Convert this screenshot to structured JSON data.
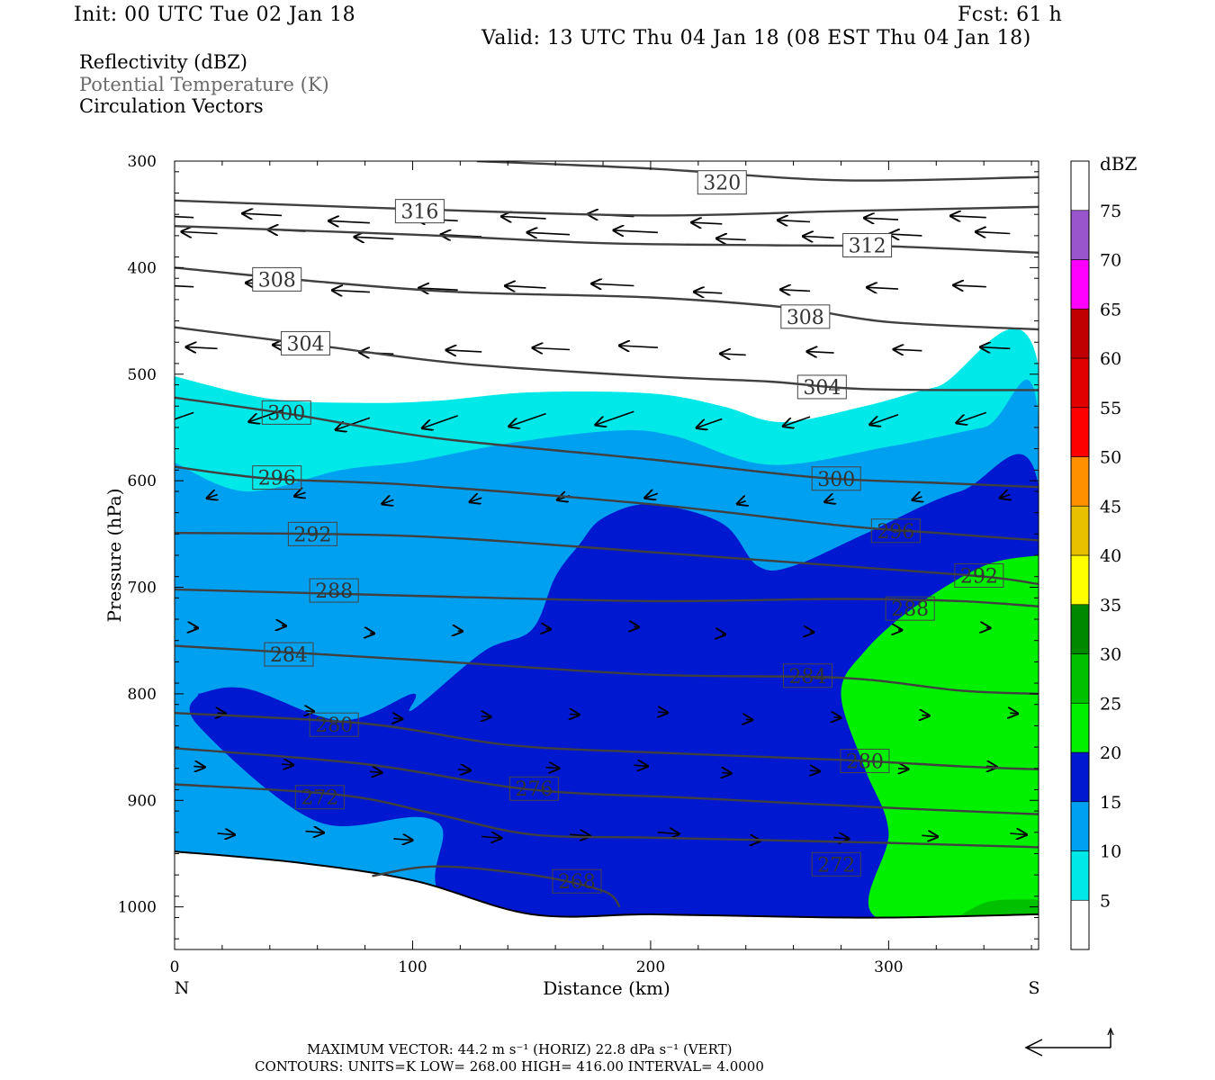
{
  "header": {
    "init": "Init: 00 UTC Tue 02 Jan 18",
    "fcst": "Fcst:   61 h",
    "valid": "Valid: 13 UTC Thu 04 Jan 18 (08 EST Thu 04 Jan 18)",
    "field1": "Reflectivity (dBZ)",
    "field2": "Potential Temperature (K)",
    "field3": "Circulation Vectors"
  },
  "footer": {
    "max_vector": "MAXIMUM VECTOR:  44.2 m s⁻¹ (HORIZ)          22.8 dPa s⁻¹ (VERT)",
    "contours": "CONTOURS:  UNITS=K   LOW=   268.00        HIGH=   416.00        INTERVAL=     4.0000"
  },
  "colors": {
    "c5": "#00e8e8",
    "c10": "#00a0f0",
    "c15": "#0018d0",
    "c20": "#00f000",
    "c25": "#00c000",
    "c30": "#008800",
    "c35": "#ffff00",
    "c40": "#e8c000",
    "c45": "#ff9000",
    "c50": "#ff0000",
    "c55": "#e00000",
    "c60": "#c00000",
    "c65": "#ff00ff",
    "c70": "#9955cc",
    "isentrope": "#404040",
    "ground": "#ffffff"
  },
  "chart_data": {
    "type": "cross-section contour",
    "xlabel": "Distance (km)",
    "ylabel": "Pressure (hPa)",
    "x_end_left": "N",
    "x_end_right": "S",
    "xlim": [
      0,
      363
    ],
    "ylim": [
      1040,
      300
    ],
    "x_ticks": [
      0,
      100,
      200,
      300
    ],
    "y_ticks": [
      300,
      400,
      500,
      600,
      700,
      800,
      900,
      1000
    ],
    "colorbar": {
      "unit": "dBZ",
      "levels": [
        5,
        10,
        15,
        20,
        25,
        30,
        35,
        40,
        45,
        50,
        55,
        60,
        65,
        70,
        75
      ]
    },
    "isentropes": [
      {
        "theta": 320,
        "label": "320",
        "pts": [
          [
            127,
            300
          ],
          [
            200,
            307
          ],
          [
            280,
            318
          ],
          [
            363,
            315
          ]
        ],
        "label_at": [
          230,
          320
        ]
      },
      {
        "theta": 316,
        "label": "316",
        "pts": [
          [
            0,
            337
          ],
          [
            100,
            345
          ],
          [
            200,
            351
          ],
          [
            280,
            347
          ],
          [
            363,
            343
          ]
        ],
        "label_at": [
          103,
          347
        ]
      },
      {
        "theta": 312,
        "label": "312",
        "pts": [
          [
            0,
            361
          ],
          [
            100,
            369
          ],
          [
            180,
            377
          ],
          [
            250,
            379
          ],
          [
            300,
            380
          ],
          [
            363,
            386
          ]
        ],
        "label_at": [
          291,
          379
        ]
      },
      {
        "theta": 308,
        "label": "308",
        "pts": [
          [
            0,
            400
          ],
          [
            60,
            413
          ],
          [
            120,
            423
          ],
          [
            200,
            428
          ],
          [
            260,
            438
          ],
          [
            300,
            451
          ],
          [
            363,
            458
          ]
        ],
        "label_at": [
          265,
          446
        ]
      },
      {
        "theta": 308,
        "label": "308",
        "pts": [],
        "label_at": [
          43,
          411
        ]
      },
      {
        "theta": 304,
        "label": "304",
        "pts": [
          [
            0,
            456
          ],
          [
            60,
            473
          ],
          [
            120,
            490
          ],
          [
            200,
            502
          ],
          [
            250,
            507
          ],
          [
            290,
            514
          ],
          [
            363,
            515
          ]
        ],
        "label_at": [
          272,
          512
        ]
      },
      {
        "theta": 304,
        "label": "304",
        "pts": [],
        "label_at": [
          55,
          471
        ]
      },
      {
        "theta": 300,
        "label": "300",
        "pts": [
          [
            0,
            522
          ],
          [
            50,
            538
          ],
          [
            110,
            560
          ],
          [
            200,
            580
          ],
          [
            270,
            597
          ],
          [
            320,
            602
          ],
          [
            363,
            606
          ]
        ],
        "label_at": [
          278,
          598
        ]
      },
      {
        "theta": 300,
        "label": "300",
        "pts": [],
        "label_at": [
          47,
          536
        ]
      },
      {
        "theta": 296,
        "label": "296",
        "pts": [
          [
            0,
            587
          ],
          [
            40,
            598
          ],
          [
            100,
            604
          ],
          [
            200,
            622
          ],
          [
            280,
            642
          ],
          [
            320,
            649
          ],
          [
            363,
            656
          ]
        ],
        "label_at": [
          303,
          647
        ]
      },
      {
        "theta": 296,
        "label": "296",
        "pts": [],
        "label_at": [
          43,
          597
        ]
      },
      {
        "theta": 292,
        "label": "292",
        "pts": [
          [
            0,
            649
          ],
          [
            100,
            652
          ],
          [
            200,
            667
          ],
          [
            280,
            680
          ],
          [
            340,
            690
          ],
          [
            363,
            697
          ]
        ],
        "label_at": [
          338,
          689
        ]
      },
      {
        "theta": 292,
        "label": "292",
        "pts": [],
        "label_at": [
          58,
          650
        ]
      },
      {
        "theta": 288,
        "label": "288",
        "pts": [
          [
            0,
            702
          ],
          [
            100,
            708
          ],
          [
            200,
            713
          ],
          [
            280,
            711
          ],
          [
            330,
            713
          ],
          [
            363,
            718
          ]
        ],
        "label_at": [
          309,
          720
        ]
      },
      {
        "theta": 288,
        "label": "288",
        "pts": [],
        "label_at": [
          67,
          703
        ]
      },
      {
        "theta": 284,
        "label": "284",
        "pts": [
          [
            0,
            755
          ],
          [
            100,
            768
          ],
          [
            200,
            782
          ],
          [
            280,
            785
          ],
          [
            330,
            797
          ],
          [
            363,
            800
          ]
        ],
        "label_at": [
          266,
          783
        ]
      },
      {
        "theta": 284,
        "label": "284",
        "pts": [],
        "label_at": [
          48,
          763
        ]
      },
      {
        "theta": 280,
        "label": "280",
        "pts": [
          [
            0,
            818
          ],
          [
            80,
            828
          ],
          [
            140,
            848
          ],
          [
            200,
            855
          ],
          [
            280,
            862
          ],
          [
            330,
            868
          ],
          [
            363,
            871
          ]
        ],
        "label_at": [
          290,
          863
        ]
      },
      {
        "theta": 280,
        "label": "280",
        "pts": [],
        "label_at": [
          67,
          829
        ]
      },
      {
        "theta": 276,
        "label": "276",
        "pts": [
          [
            0,
            851
          ],
          [
            80,
            866
          ],
          [
            150,
            890
          ],
          [
            220,
            898
          ],
          [
            300,
            907
          ],
          [
            363,
            913
          ]
        ],
        "label_at": [
          151,
          889
        ]
      },
      {
        "theta": 272,
        "label": "272",
        "pts": [
          [
            0,
            885
          ],
          [
            70,
            895
          ],
          [
            110,
            913
          ],
          [
            150,
            932
          ],
          [
            200,
            935
          ],
          [
            300,
            940
          ],
          [
            363,
            944
          ]
        ],
        "label_at": [
          278,
          960
        ]
      },
      {
        "theta": 272,
        "label": "272",
        "pts": [],
        "label_at": [
          61,
          897
        ]
      },
      {
        "theta": 268,
        "label": "268",
        "pts": [
          [
            83,
            971
          ],
          [
            110,
            962
          ],
          [
            150,
            970
          ],
          [
            180,
            985
          ],
          [
            187,
            1000
          ]
        ],
        "label_at": [
          169,
          976
        ]
      }
    ],
    "reflectivity_regions": [
      {
        "dbz": 5,
        "pts": [
          [
            0,
            502
          ],
          [
            40,
            523
          ],
          [
            80,
            527
          ],
          [
            110,
            525
          ],
          [
            150,
            517
          ],
          [
            200,
            518
          ],
          [
            230,
            530
          ],
          [
            255,
            545
          ],
          [
            290,
            530
          ],
          [
            320,
            512
          ],
          [
            363,
            493
          ],
          [
            363,
            1040
          ],
          [
            0,
            1040
          ]
        ]
      },
      {
        "dbz": 10,
        "pts": [
          [
            0,
            583
          ],
          [
            30,
            610
          ],
          [
            70,
            590
          ],
          [
            100,
            582
          ],
          [
            140,
            565
          ],
          [
            185,
            553
          ],
          [
            210,
            558
          ],
          [
            250,
            585
          ],
          [
            300,
            568
          ],
          [
            340,
            550
          ],
          [
            363,
            540
          ],
          [
            363,
            1040
          ],
          [
            0,
            1040
          ]
        ]
      },
      {
        "dbz": 15,
        "pts": [
          [
            10,
            800
          ],
          [
            30,
            795
          ],
          [
            70,
            825
          ],
          [
            100,
            800
          ],
          [
            100,
            815
          ],
          [
            130,
            760
          ],
          [
            150,
            740
          ],
          [
            160,
            690
          ],
          [
            170,
            660
          ],
          [
            180,
            635
          ],
          [
            200,
            622
          ],
          [
            230,
            640
          ],
          [
            245,
            680
          ],
          [
            260,
            680
          ],
          [
            290,
            650
          ],
          [
            330,
            610
          ],
          [
            363,
            605
          ],
          [
            363,
            1010
          ],
          [
            132,
            1010
          ],
          [
            110,
            920
          ],
          [
            60,
            920
          ],
          [
            10,
            830
          ]
        ]
      },
      {
        "dbz": 20,
        "pts": [
          [
            363,
            670
          ],
          [
            340,
            680
          ],
          [
            310,
            720
          ],
          [
            290,
            760
          ],
          [
            280,
            800
          ],
          [
            290,
            870
          ],
          [
            300,
            930
          ],
          [
            295,
            1010
          ],
          [
            363,
            1010
          ]
        ]
      }
    ],
    "terrain_pressure": [
      [
        0,
        948
      ],
      [
        50,
        958
      ],
      [
        100,
        975
      ],
      [
        150,
        1007
      ],
      [
        200,
        1007
      ],
      [
        250,
        1009
      ],
      [
        300,
        1010
      ],
      [
        363,
        1007
      ]
    ],
    "vector_field_arrows": "circulation vectors plotted on the section; mostly northward aloft, southward near surface"
  }
}
